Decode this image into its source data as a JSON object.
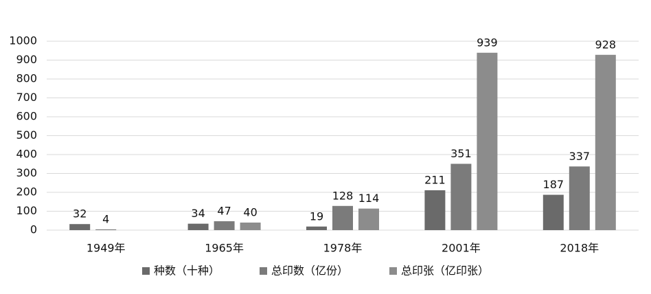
{
  "chart_data": {
    "type": "bar",
    "categories": [
      "1949年",
      "1965年",
      "1978年",
      "2001年",
      "2018年"
    ],
    "series": [
      {
        "name": "种数（十种）",
        "color": "#6a6a6a",
        "values": [
          32,
          34,
          19,
          211,
          187
        ]
      },
      {
        "name": "总印数（亿份）",
        "color": "#7b7b7b",
        "values": [
          4,
          47,
          128,
          351,
          337
        ]
      },
      {
        "name": "总印张（亿印张）",
        "color": "#8c8c8c",
        "values": [
          null,
          40,
          114,
          939,
          928
        ]
      }
    ],
    "ylim": [
      0,
      1000
    ],
    "yticks": [
      0,
      100,
      200,
      300,
      400,
      500,
      600,
      700,
      800,
      900,
      1000
    ],
    "grid": true,
    "legend": "bottom"
  }
}
